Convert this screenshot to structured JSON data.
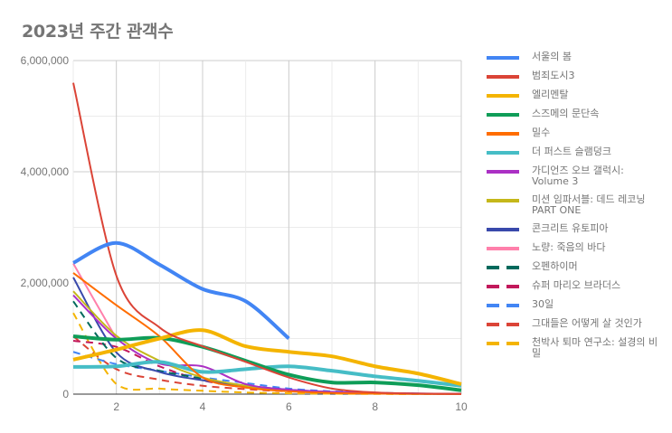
{
  "chart_data": {
    "type": "line",
    "title": "2023년 주간 관객수",
    "xlabel": "",
    "ylabel": "",
    "x": [
      1,
      2,
      3,
      4,
      5,
      6,
      7,
      8,
      9,
      10
    ],
    "xticks": [
      2,
      4,
      6,
      8,
      10
    ],
    "xlim": [
      1,
      10
    ],
    "yticks": [
      0,
      2000000,
      4000000,
      6000000
    ],
    "ytick_labels": [
      "0",
      "2,000,000",
      "4,000,000",
      "6,000,000"
    ],
    "ylim": [
      0,
      6000000
    ],
    "grid": true,
    "legend_position": "right",
    "series": [
      {
        "name": "서울의 봄",
        "color": "#4285f4",
        "dashed": false,
        "width": 4,
        "values": [
          2360000,
          2720000,
          2330000,
          1890000,
          1670000,
          1000000,
          null,
          null,
          null,
          null
        ]
      },
      {
        "name": "범죄도시3",
        "color": "#db4437",
        "dashed": false,
        "width": 2,
        "values": [
          5600000,
          2130000,
          1200000,
          860000,
          580000,
          300000,
          100000,
          30000,
          10000,
          5000
        ]
      },
      {
        "name": "엘리멘탈",
        "color": "#f4b400",
        "dashed": false,
        "width": 4,
        "values": [
          620000,
          800000,
          1000000,
          1150000,
          860000,
          760000,
          680000,
          500000,
          370000,
          180000
        ]
      },
      {
        "name": "스즈메의 문단속",
        "color": "#0f9d58",
        "dashed": false,
        "width": 4,
        "values": [
          1040000,
          980000,
          1010000,
          850000,
          600000,
          350000,
          210000,
          210000,
          160000,
          70000
        ]
      },
      {
        "name": "밀수",
        "color": "#ff6d00",
        "dashed": false,
        "width": 2,
        "values": [
          2180000,
          1600000,
          1040000,
          300000,
          120000,
          50000,
          20000,
          10000,
          5000,
          2000
        ]
      },
      {
        "name": "더 퍼스트 슬램덩크",
        "color": "#46bdc6",
        "dashed": false,
        "width": 4,
        "values": [
          490000,
          500000,
          580000,
          400000,
          450000,
          500000,
          420000,
          320000,
          240000,
          150000
        ]
      },
      {
        "name": "가디언즈 오브 갤럭시: Volume 3",
        "color": "#ab30c4",
        "dashed": false,
        "width": 2,
        "values": [
          1780000,
          1000000,
          550000,
          500000,
          180000,
          80000,
          40000,
          20000,
          10000,
          5000
        ]
      },
      {
        "name": "미션 임파서블: 데드 레코닝 PART ONE",
        "color": "#c5b71a",
        "dashed": false,
        "width": 2,
        "values": [
          1850000,
          1050000,
          600000,
          300000,
          150000,
          60000,
          30000,
          10000,
          5000,
          2000
        ]
      },
      {
        "name": "콘크리트 유토피아",
        "color": "#3949ab",
        "dashed": false,
        "width": 2,
        "values": [
          2100000,
          750000,
          400000,
          250000,
          150000,
          80000,
          40000,
          20000,
          10000,
          5000
        ]
      },
      {
        "name": "노량: 죽음의 바다",
        "color": "#ff80ab",
        "dashed": false,
        "width": 2,
        "values": [
          2350000,
          1000000,
          null,
          null,
          null,
          null,
          null,
          null,
          null,
          null
        ]
      },
      {
        "name": "오펜하이머",
        "color": "#00695c",
        "dashed": true,
        "width": 2,
        "values": [
          1670000,
          650000,
          420000,
          280000,
          150000,
          70000,
          30000,
          15000,
          8000,
          4000
        ]
      },
      {
        "name": "슈퍼 마리오 브라더스",
        "color": "#c2185b",
        "dashed": true,
        "width": 2,
        "values": [
          960000,
          850000,
          500000,
          250000,
          120000,
          60000,
          30000,
          15000,
          8000,
          4000
        ]
      },
      {
        "name": "30일",
        "color": "#4285f4",
        "dashed": true,
        "width": 2,
        "values": [
          760000,
          540000,
          420000,
          300000,
          200000,
          100000,
          50000,
          25000,
          10000,
          5000
        ]
      },
      {
        "name": "그대들은 어떻게 살 것인가",
        "color": "#db4437",
        "dashed": true,
        "width": 2,
        "values": [
          1040000,
          450000,
          260000,
          150000,
          90000,
          50000,
          30000,
          15000,
          8000,
          4000
        ]
      },
      {
        "name": "천박사 퇴마 연구소: 설경의 비밀",
        "color": "#f4b400",
        "dashed": true,
        "width": 2,
        "values": [
          1460000,
          180000,
          100000,
          60000,
          30000,
          15000,
          8000,
          4000,
          2000,
          1000
        ]
      }
    ]
  }
}
